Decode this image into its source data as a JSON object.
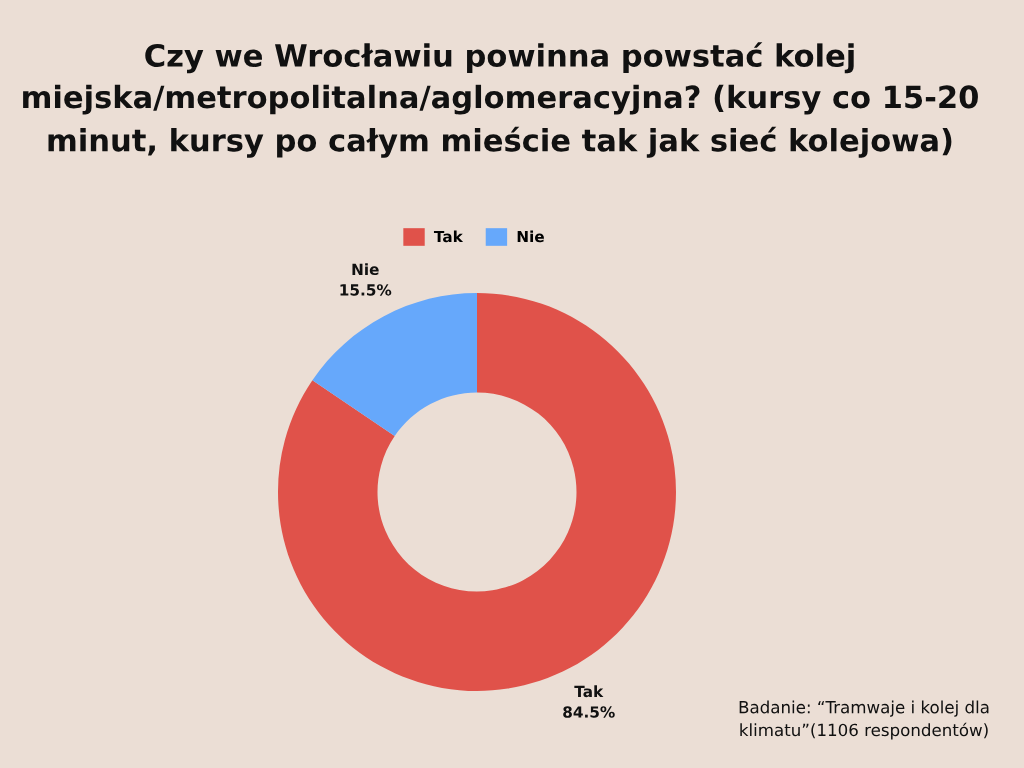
{
  "chart_data": {
    "type": "donut",
    "title": "Czy we Wrocławiu powinna powstać kolej miejska/metropolitalna/aglomeracyjna? (kursy co 15-20 minut, kursy po całym mieście tak jak sieć kolejowa)",
    "categories": [
      "Tak",
      "Nie"
    ],
    "values": [
      84.5,
      15.5
    ],
    "colors": [
      "#e0524a",
      "#66a8fb"
    ],
    "value_labels": [
      "84.5%",
      "15.5%"
    ],
    "legend": "top",
    "annotations": [
      "Badanie: “Tramwaje i kolej dla klimatu”(1106 respondentów)"
    ]
  }
}
